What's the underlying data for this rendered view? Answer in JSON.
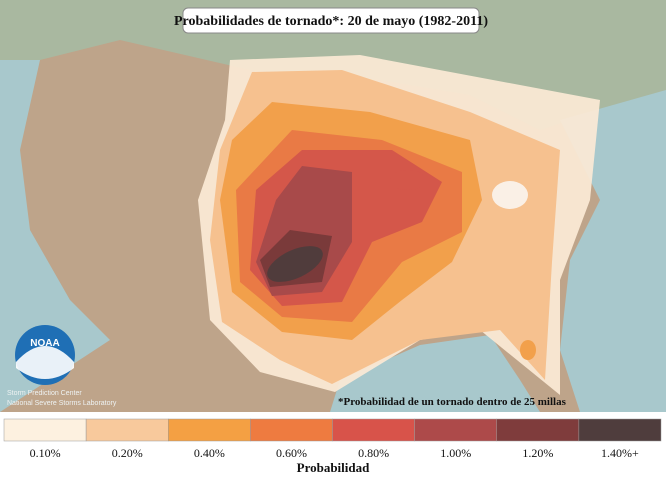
{
  "header": {
    "title": "Probabilidades de tornado*: 20 de mayo (1982-2011)"
  },
  "map": {
    "footnote": "*Probabilidad de un tornado dentro de 25 millas",
    "logo": "NOAA",
    "credits": [
      "Storm Prediction Center",
      "National Severe Storms Laboratory"
    ]
  },
  "legend": {
    "title": "Probabilidad",
    "items": [
      {
        "label": "0.10%",
        "color": "#fdf1e0"
      },
      {
        "label": "0.20%",
        "color": "#f8c99c"
      },
      {
        "label": "0.40%",
        "color": "#f4a043"
      },
      {
        "label": "0.60%",
        "color": "#ee7b40"
      },
      {
        "label": "0.80%",
        "color": "#d8534a"
      },
      {
        "label": "1.00%",
        "color": "#ad4a4a"
      },
      {
        "label": "1.20%",
        "color": "#7f3c3c"
      },
      {
        "label": "1.40%+",
        "color": "#4f3d3d"
      }
    ]
  }
}
